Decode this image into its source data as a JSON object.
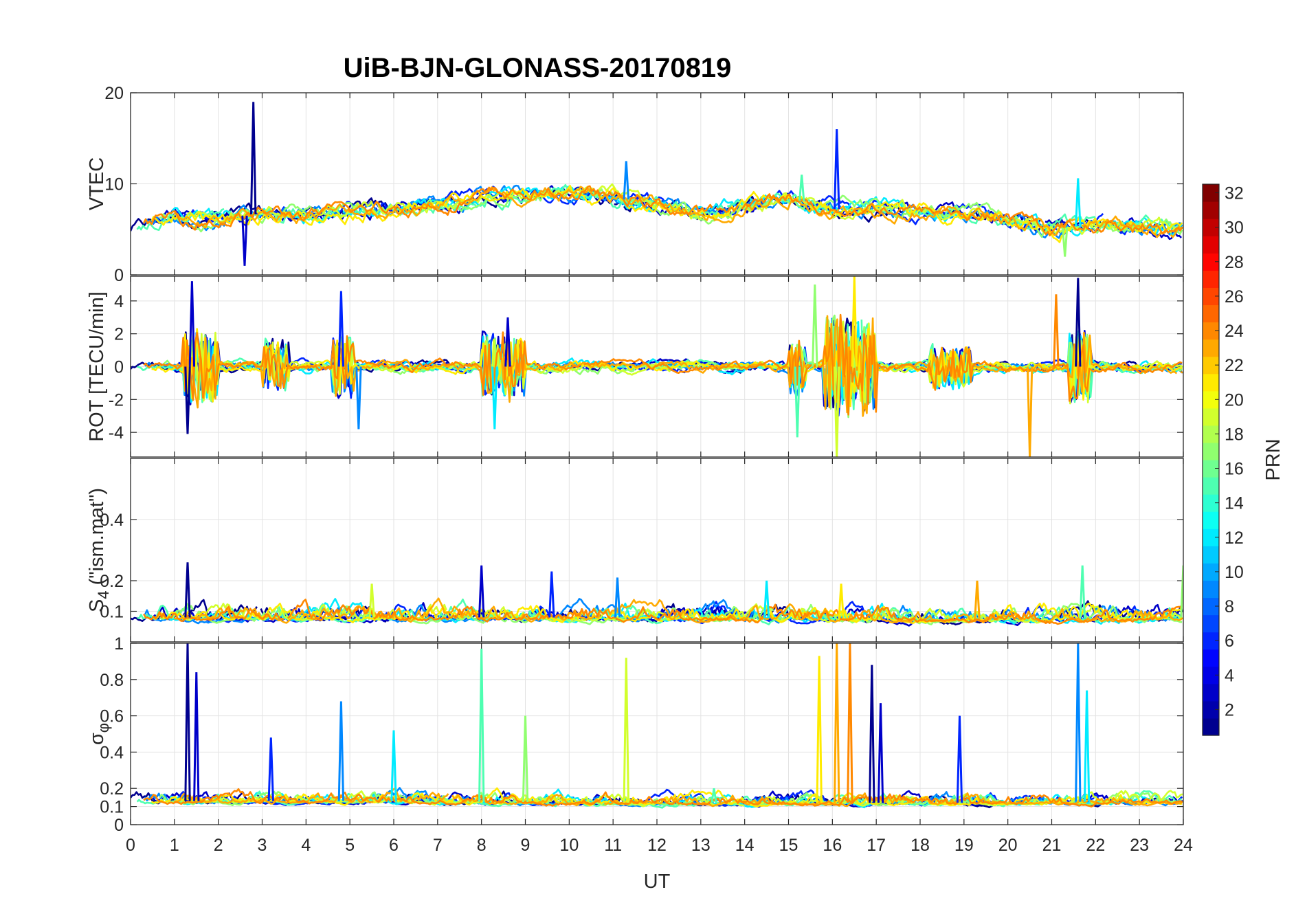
{
  "chart_data": {
    "type": "line",
    "title": "UiB-BJN-GLONASS-20170819",
    "xlabel": "UT",
    "xlim": [
      0,
      24
    ],
    "x_ticks": [
      "0",
      "1",
      "2",
      "3",
      "4",
      "5",
      "6",
      "7",
      "8",
      "9",
      "10",
      "11",
      "12",
      "13",
      "14",
      "15",
      "16",
      "17",
      "18",
      "19",
      "20",
      "21",
      "22",
      "23",
      "24"
    ],
    "panels": [
      {
        "id": "vtec",
        "ylabel": "VTEC",
        "ylim": [
          0,
          20
        ],
        "y_ticks": [
          "0",
          "10",
          "20"
        ],
        "y_tick_values": [
          0,
          10,
          20
        ],
        "baseline": [
          [
            0,
            5
          ],
          [
            1,
            6.5
          ],
          [
            2,
            6
          ],
          [
            3,
            6.8
          ],
          [
            4,
            6.6
          ],
          [
            5,
            7
          ],
          [
            6,
            7.2
          ],
          [
            7,
            7.8
          ],
          [
            8,
            8.5
          ],
          [
            9,
            8.8
          ],
          [
            10,
            9
          ],
          [
            11,
            8.5
          ],
          [
            12,
            7.8
          ],
          [
            13,
            6.5
          ],
          [
            14,
            7.5
          ],
          [
            15,
            8.5
          ],
          [
            16,
            7.2
          ],
          [
            17,
            7.4
          ],
          [
            18,
            7
          ],
          [
            19,
            6.8
          ],
          [
            20,
            6.2
          ],
          [
            21,
            5
          ],
          [
            22,
            5.5
          ],
          [
            23,
            5.2
          ],
          [
            24,
            5
          ]
        ],
        "noise": 0.9,
        "spikes": [
          [
            2.8,
            19
          ],
          [
            2.6,
            1
          ],
          [
            16.1,
            16
          ],
          [
            11.3,
            12.5
          ],
          [
            21.6,
            10.6
          ],
          [
            15.3,
            11
          ],
          [
            21.3,
            2
          ]
        ]
      },
      {
        "id": "rot",
        "ylabel": "ROT [TECU/min]",
        "ylim": [
          -5.5,
          5.5
        ],
        "y_ticks": [
          "-4",
          "-2",
          "0",
          "2",
          "4"
        ],
        "y_tick_values": [
          -4,
          -2,
          0,
          2,
          4
        ],
        "baseline": [
          [
            0,
            0
          ],
          [
            24,
            0
          ]
        ],
        "noise": 0.3,
        "spikes": [
          [
            1.3,
            -4.1
          ],
          [
            1.4,
            5.2
          ],
          [
            4.8,
            4.6
          ],
          [
            5.2,
            -3.8
          ],
          [
            8.3,
            -3.8
          ],
          [
            15.2,
            -4.3
          ],
          [
            15.6,
            5
          ],
          [
            16.1,
            -5.5
          ],
          [
            16.5,
            5.5
          ],
          [
            20.5,
            -5.5
          ],
          [
            21.1,
            4.4
          ],
          [
            21.6,
            5.4
          ],
          [
            8.6,
            3
          ]
        ],
        "bursts": [
          [
            1.2,
            2.0,
            2.2
          ],
          [
            3.0,
            3.6,
            1.5
          ],
          [
            4.6,
            5.1,
            1.8
          ],
          [
            8.0,
            9.0,
            1.8
          ],
          [
            15.0,
            15.4,
            1.4
          ],
          [
            15.8,
            17.0,
            3.0
          ],
          [
            18.2,
            19.2,
            1.2
          ],
          [
            21.4,
            21.9,
            2.2
          ]
        ]
      },
      {
        "id": "s4",
        "ylabel": "S4 (\"ism.mat\")",
        "ylabel_main": "S",
        "ylabel_sub": "4",
        "ylabel_rest": " (\"ism.mat\")",
        "ylim": [
          0,
          0.6
        ],
        "y_ticks": [
          "0.1",
          "0.2",
          "0.4"
        ],
        "y_tick_values": [
          0.1,
          0.2,
          0.4
        ],
        "baseline": [
          [
            0,
            0.08
          ],
          [
            6,
            0.08
          ],
          [
            12,
            0.08
          ],
          [
            18,
            0.075
          ],
          [
            24,
            0.08
          ]
        ],
        "noise": 0.025,
        "spikes": [
          [
            1.3,
            0.26
          ],
          [
            8.0,
            0.25
          ],
          [
            9.6,
            0.23
          ],
          [
            11.1,
            0.21
          ],
          [
            14.5,
            0.2
          ],
          [
            21.7,
            0.25
          ],
          [
            24.0,
            0.25
          ],
          [
            5.5,
            0.19
          ],
          [
            16.2,
            0.19
          ],
          [
            19.3,
            0.2
          ]
        ]
      },
      {
        "id": "sigma",
        "ylabel": "σ φ",
        "ylabel_main": "σ",
        "ylabel_sub": "φ",
        "ylim": [
          0,
          1
        ],
        "y_ticks": [
          "0",
          "0.1",
          "0.2",
          "0.4",
          "0.6",
          "0.8",
          "1"
        ],
        "y_tick_values": [
          0,
          0.1,
          0.2,
          0.4,
          0.6,
          0.8,
          1
        ],
        "baseline": [
          [
            0,
            0.13
          ],
          [
            6,
            0.13
          ],
          [
            12,
            0.12
          ],
          [
            18,
            0.12
          ],
          [
            24,
            0.13
          ]
        ],
        "noise": 0.03,
        "spikes": [
          [
            1.3,
            1.0
          ],
          [
            1.5,
            0.84
          ],
          [
            3.2,
            0.48
          ],
          [
            4.8,
            0.68
          ],
          [
            6.0,
            0.52
          ],
          [
            8.0,
            0.97
          ],
          [
            9.0,
            0.6
          ],
          [
            11.3,
            0.92
          ],
          [
            15.7,
            0.93
          ],
          [
            16.1,
            1.0
          ],
          [
            16.4,
            1.0
          ],
          [
            16.9,
            0.88
          ],
          [
            17.1,
            0.67
          ],
          [
            18.9,
            0.6
          ],
          [
            21.6,
            1.0
          ],
          [
            21.8,
            0.74
          ],
          [
            13.3,
            0.2
          ]
        ]
      }
    ],
    "colorbar": {
      "label": "PRN",
      "range": [
        1,
        32
      ],
      "ticks": [
        "2",
        "4",
        "6",
        "8",
        "10",
        "12",
        "14",
        "16",
        "18",
        "20",
        "22",
        "24",
        "26",
        "28",
        "30",
        "32"
      ],
      "tick_values": [
        2,
        4,
        6,
        8,
        10,
        12,
        14,
        16,
        18,
        20,
        22,
        24,
        26,
        28,
        30,
        32
      ],
      "colormap": "jet",
      "colors": [
        "#00008f",
        "#0000ff",
        "#0080ff",
        "#00ffff",
        "#80ff80",
        "#ffff00",
        "#ff8000",
        "#ff0000",
        "#800000"
      ]
    },
    "series_prns": [
      1,
      3,
      6,
      9,
      12,
      15,
      17,
      19,
      21,
      23,
      24
    ],
    "grid": true
  }
}
